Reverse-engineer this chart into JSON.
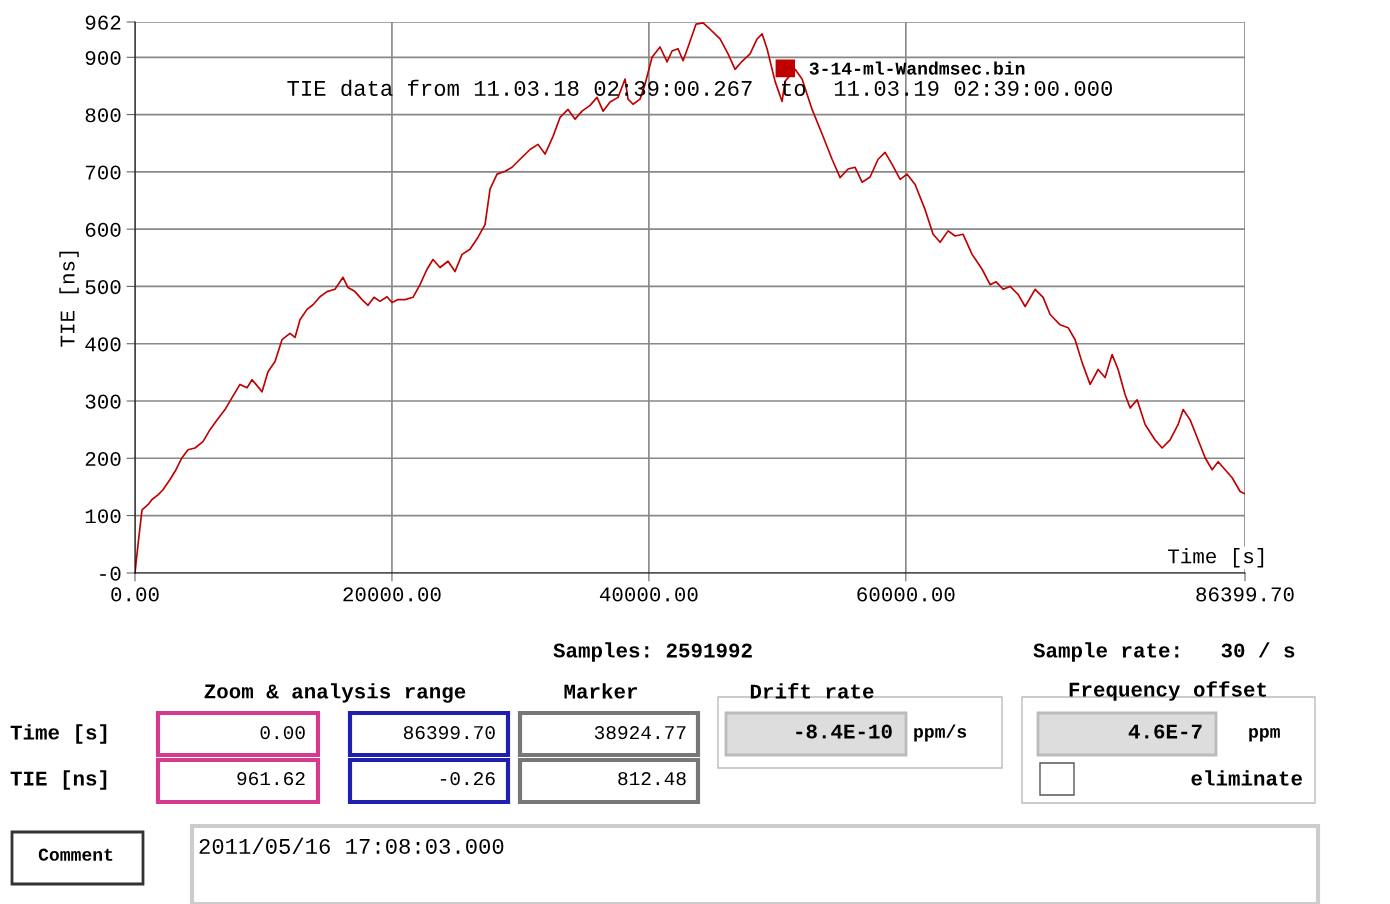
{
  "chart_data": {
    "type": "line",
    "xlabel": "Time [s]",
    "ylabel": "TIE [ns]",
    "xlim": [
      0,
      86399.7
    ],
    "ylim": [
      -0.26,
      961.62
    ],
    "xticks": [
      {
        "value": 0,
        "label": "0.00"
      },
      {
        "value": 20000,
        "label": "20000.00"
      },
      {
        "value": 40000,
        "label": "40000.00"
      },
      {
        "value": 60000,
        "label": "60000.00"
      },
      {
        "value": 86399.7,
        "label": "86399.70"
      }
    ],
    "yticks": [
      {
        "value": -0.26,
        "label": "-0"
      },
      100,
      200,
      300,
      400,
      500,
      600,
      700,
      800,
      900,
      {
        "value": 961.62,
        "label": "962"
      }
    ],
    "grid": true,
    "legend": "top",
    "marker": "none",
    "line_style": "solid",
    "series": [
      {
        "name": "3-14-ml-Wandmsec.bin",
        "color": "#c00000",
        "x": [
          0,
          234,
          545,
          1012,
          1323,
          1790,
          2180,
          2724,
          3191,
          3658,
          4125,
          4670,
          5293,
          5838,
          6383,
          7006,
          7550,
          8173,
          8718,
          9107,
          9419,
          9886,
          10353,
          10898,
          11443,
          12066,
          12455,
          12844,
          13389,
          13856,
          14401,
          14946,
          15568,
          16191,
          16580,
          17125,
          17670,
          18137,
          18604,
          19071,
          19616,
          20005,
          20472,
          21017,
          21640,
          22185,
          22730,
          23197,
          23742,
          24365,
          24910,
          25455,
          26078,
          26701,
          27246,
          27635,
          28180,
          28803,
          29348,
          29970,
          30749,
          31372,
          31917,
          32539,
          33084,
          33707,
          34252,
          34797,
          35420,
          35965,
          36432,
          36977,
          37600,
          38145,
          38378,
          38767,
          39312,
          39701,
          40246,
          40869,
          41414,
          41803,
          42270,
          42660,
          43049,
          43672,
          44217,
          44762,
          45540,
          46163,
          46708,
          47253,
          47876,
          48421,
          48810,
          49199,
          49822,
          50367,
          50600,
          51379,
          51924,
          52702,
          53481,
          54259,
          54882,
          55505,
          56050,
          56595,
          57218,
          57841,
          58386,
          58931,
          59554,
          60099,
          60722,
          61500,
          62123,
          62668,
          63290,
          63835,
          64458,
          65158,
          65937,
          66560,
          67027,
          67572,
          68117,
          68740,
          69285,
          70063,
          70686,
          71231,
          72009,
          72632,
          73177,
          73722,
          74345,
          74967,
          75512,
          76057,
          76524,
          77069,
          77458,
          78003,
          78626,
          79404,
          79949,
          80572,
          81195,
          81584,
          82129,
          82752,
          83297,
          83842,
          84309,
          84854,
          85399,
          86021,
          86399.7
        ],
        "values": [
          0,
          49,
          110,
          119,
          128,
          136,
          145,
          163,
          180,
          201,
          215,
          218,
          229,
          250,
          267,
          285,
          306,
          329,
          323,
          337,
          329,
          316,
          351,
          369,
          407,
          418,
          411,
          442,
          460,
          468,
          482,
          491,
          495,
          516,
          498,
          491,
          477,
          467,
          481,
          474,
          482,
          472,
          477,
          477,
          481,
          503,
          530,
          547,
          533,
          544,
          526,
          556,
          565,
          586,
          608,
          670,
          696,
          701,
          708,
          722,
          739,
          748,
          731,
          762,
          795,
          809,
          792,
          806,
          816,
          830,
          806,
          822,
          830,
          862,
          827,
          818,
          827,
          853,
          900,
          918,
          892,
          911,
          915,
          894,
          918,
          958,
          960,
          949,
          932,
          906,
          879,
          893,
          906,
          932,
          941,
          915,
          858,
          823,
          858,
          879,
          862,
          809,
          766,
          722,
          690,
          705,
          708,
          682,
          691,
          722,
          734,
          713,
          687,
          696,
          678,
          634,
          591,
          577,
          597,
          588,
          591,
          556,
          530,
          503,
          508,
          495,
          500,
          486,
          465,
          495,
          481,
          451,
          433,
          428,
          407,
          367,
          329,
          355,
          341,
          381,
          355,
          311,
          288,
          302,
          259,
          232,
          218,
          232,
          259,
          285,
          267,
          232,
          201,
          180,
          194,
          180,
          166,
          142,
          138
        ]
      }
    ],
    "annotations": [
      "TIE data from 11.03.18 02:39:00.267  to  11.03.19 02:39:00.000",
      "Samples: 2591992",
      "Sample rate:   30 / s",
      "Zoom & analysis range",
      "Marker",
      "Drift rate",
      "Frequency offset",
      "Time [s]",
      "TIE [ns]",
      "0.00",
      "86399.70",
      "38924.77",
      "961.62",
      "-0.26",
      "812.48",
      "-8.4E-10",
      "ppm/s",
      "4.6E-7",
      "ppm",
      "eliminate",
      "Comment",
      "2011/05/16 17:08:03.000"
    ]
  }
}
